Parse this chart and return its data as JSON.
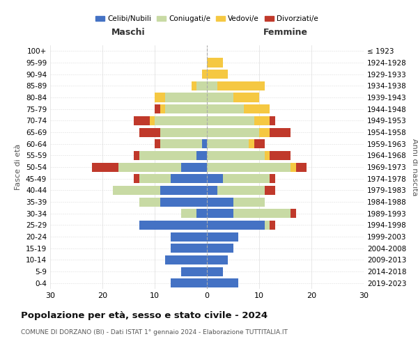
{
  "age_groups": [
    "0-4",
    "5-9",
    "10-14",
    "15-19",
    "20-24",
    "25-29",
    "30-34",
    "35-39",
    "40-44",
    "45-49",
    "50-54",
    "55-59",
    "60-64",
    "65-69",
    "70-74",
    "75-79",
    "80-84",
    "85-89",
    "90-94",
    "95-99",
    "100+"
  ],
  "birth_years": [
    "2019-2023",
    "2014-2018",
    "2009-2013",
    "2004-2008",
    "1999-2003",
    "1994-1998",
    "1989-1993",
    "1984-1988",
    "1979-1983",
    "1974-1978",
    "1969-1973",
    "1964-1968",
    "1959-1963",
    "1954-1958",
    "1949-1953",
    "1944-1948",
    "1939-1943",
    "1934-1938",
    "1929-1933",
    "1924-1928",
    "≤ 1923"
  ],
  "maschi": {
    "celibi": [
      7,
      5,
      8,
      7,
      7,
      13,
      2,
      9,
      9,
      7,
      5,
      2,
      1,
      0,
      0,
      0,
      0,
      0,
      0,
      0,
      0
    ],
    "coniugati": [
      0,
      0,
      0,
      0,
      0,
      0,
      3,
      4,
      9,
      6,
      12,
      11,
      8,
      9,
      10,
      8,
      8,
      2,
      0,
      0,
      0
    ],
    "vedovi": [
      0,
      0,
      0,
      0,
      0,
      0,
      0,
      0,
      0,
      0,
      0,
      0,
      0,
      0,
      1,
      1,
      2,
      1,
      1,
      0,
      0
    ],
    "divorziati": [
      0,
      0,
      0,
      0,
      0,
      0,
      0,
      0,
      0,
      1,
      5,
      1,
      1,
      4,
      3,
      1,
      0,
      0,
      0,
      0,
      0
    ]
  },
  "femmine": {
    "nubili": [
      6,
      3,
      4,
      5,
      6,
      11,
      5,
      5,
      2,
      3,
      0,
      0,
      0,
      0,
      0,
      0,
      0,
      0,
      0,
      0,
      0
    ],
    "coniugate": [
      0,
      0,
      0,
      0,
      0,
      1,
      11,
      6,
      9,
      9,
      16,
      11,
      8,
      10,
      9,
      7,
      5,
      2,
      0,
      0,
      0
    ],
    "vedove": [
      0,
      0,
      0,
      0,
      0,
      0,
      0,
      0,
      0,
      0,
      1,
      1,
      1,
      2,
      3,
      5,
      5,
      9,
      4,
      3,
      0
    ],
    "divorziate": [
      0,
      0,
      0,
      0,
      0,
      1,
      1,
      0,
      2,
      1,
      2,
      4,
      2,
      4,
      1,
      0,
      0,
      0,
      0,
      0,
      0
    ]
  },
  "colors": {
    "celibi": "#4472c4",
    "coniugati": "#c8daa4",
    "vedovi": "#f5c842",
    "divorziati": "#c0392b"
  },
  "xlim": 30,
  "title": "Popolazione per età, sesso e stato civile - 2024",
  "subtitle": "COMUNE DI DORZANO (BI) - Dati ISTAT 1° gennaio 2024 - Elaborazione TUTTITALIA.IT",
  "ylabel_left": "Fasce di età",
  "ylabel_right": "Anni di nascita",
  "xlabel_left": "Maschi",
  "xlabel_right": "Femmine",
  "bg_color": "#ffffff",
  "grid_color": "#dddddd"
}
